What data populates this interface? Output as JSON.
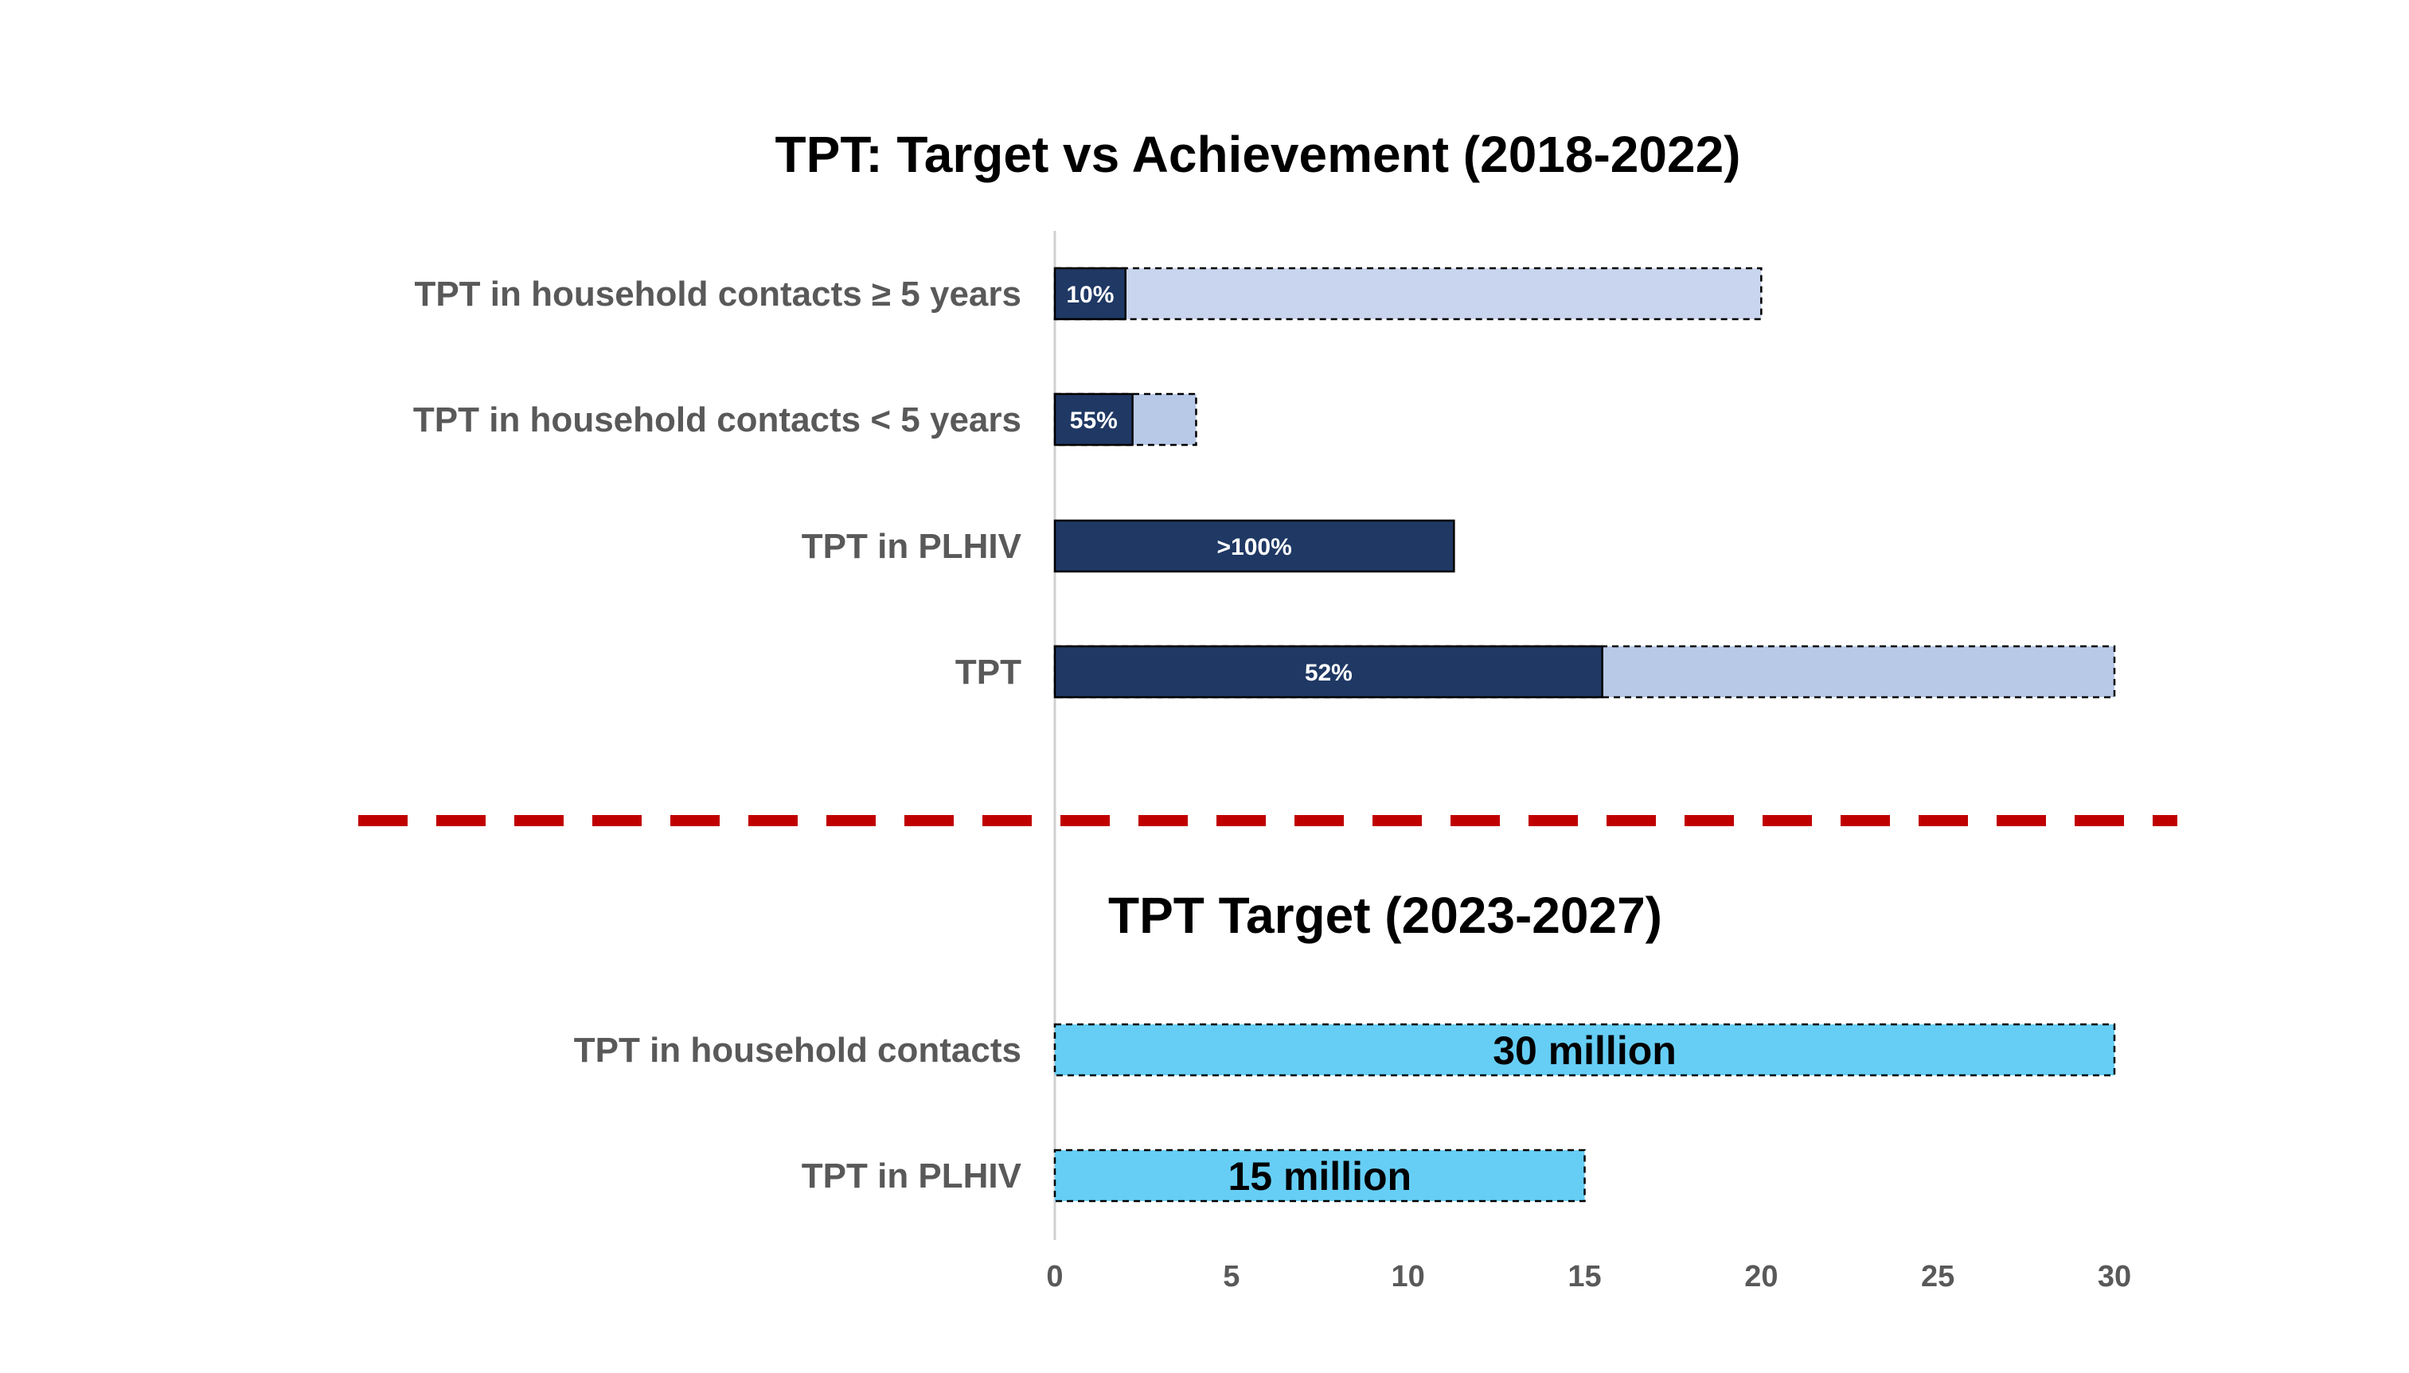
{
  "chart_data": {
    "type": "bar",
    "orientation": "horizontal",
    "x_ticks": [
      0,
      5,
      10,
      15,
      20,
      25,
      30
    ],
    "xlim": [
      0,
      30
    ],
    "grid": false,
    "sections": [
      {
        "title": "TPT: Target vs Achievement (2018-2022)",
        "rows": [
          {
            "category": "TPT in household contacts ≥ 5 years",
            "achieved": 2.0,
            "target": 20.0,
            "label": "10%"
          },
          {
            "category": "TPT in household contacts < 5 years",
            "achieved": 2.2,
            "target": 4.0,
            "label": "55%"
          },
          {
            "category": "TPT in PLHIV",
            "achieved": 11.3,
            "target": null,
            "label": ">100%"
          },
          {
            "category": "TPT",
            "achieved": 15.5,
            "target": 30.0,
            "label": "52%"
          }
        ]
      },
      {
        "title": "TPT Target (2023-2027)",
        "rows": [
          {
            "category": "TPT in household contacts",
            "target": 30.0,
            "label": "30 million"
          },
          {
            "category": "TPT in PLHIV",
            "target": 15.0,
            "label": "15 million"
          }
        ]
      }
    ],
    "colors": {
      "achieved": "#1f3864",
      "target_light": "#c9d5ee",
      "target_mid": "#b8c9e8",
      "future_target": "#66cef5",
      "divider": "#c00000"
    }
  }
}
